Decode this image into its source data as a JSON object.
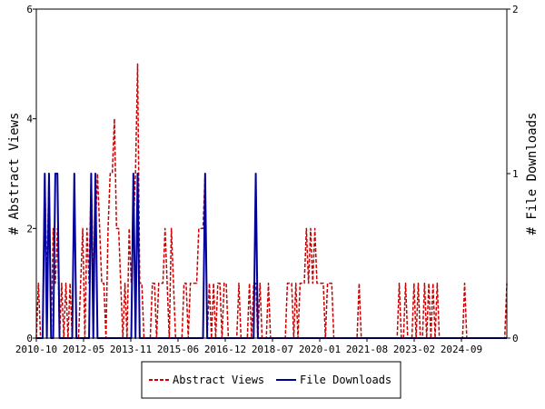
{
  "chart_data": {
    "type": "line",
    "x_axis": {
      "tick_labels": [
        "2010-10",
        "2012-05",
        "2013-11",
        "2015-06",
        "2016-12",
        "2018-07",
        "2020-01",
        "2021-08",
        "2023-02",
        "2024-09"
      ],
      "range": [
        "2010-10",
        "2025-10"
      ]
    },
    "y_left": {
      "label": "# Abstract Views",
      "ticks": [
        "0",
        "2",
        "4",
        "6"
      ],
      "range": [
        0,
        6
      ]
    },
    "y_right": {
      "label": "# File Downloads",
      "ticks": [
        "0",
        "1",
        "2"
      ],
      "range": [
        0,
        2
      ]
    },
    "grid": false,
    "legend_position": "bottom-center",
    "series": [
      {
        "name": "Abstract Views",
        "axis": "left",
        "color": "#cc0000",
        "style": "dashed",
        "values": [
          0,
          1,
          0,
          0,
          3,
          1,
          3,
          0,
          2,
          1,
          2,
          0,
          1,
          0,
          1,
          0,
          1,
          0,
          0,
          0,
          0,
          1,
          2,
          0,
          2,
          1,
          3,
          1,
          2,
          3,
          2,
          1,
          1,
          0,
          2,
          3,
          3,
          4,
          2,
          2,
          1,
          0,
          1,
          0,
          2,
          1,
          2,
          3,
          5,
          1,
          1,
          0,
          0,
          0,
          0,
          1,
          1,
          0,
          1,
          1,
          1,
          2,
          1,
          0,
          2,
          1,
          0,
          0,
          0,
          0,
          1,
          1,
          0,
          1,
          1,
          1,
          1,
          2,
          2,
          2,
          3,
          0,
          1,
          0,
          1,
          0,
          1,
          1,
          0,
          1,
          1,
          0,
          0,
          0,
          0,
          0,
          1,
          0,
          0,
          0,
          0,
          1,
          0,
          1,
          1,
          0,
          1,
          0,
          0,
          0,
          1,
          0,
          0,
          0,
          0,
          0,
          0,
          0,
          0,
          1,
          1,
          1,
          0,
          1,
          0,
          1,
          1,
          1,
          2,
          1,
          2,
          1,
          2,
          1,
          1,
          1,
          1,
          0,
          1,
          1,
          1,
          0,
          0,
          0,
          0,
          0,
          0,
          0,
          0,
          0,
          0,
          0,
          0,
          1,
          0,
          0,
          0,
          0,
          0,
          0,
          0,
          0,
          0,
          0,
          0,
          0,
          0,
          0,
          0,
          0,
          0,
          0,
          1,
          0,
          0,
          1,
          0,
          0,
          0,
          1,
          0,
          1,
          0,
          0,
          1,
          0,
          1,
          0,
          1,
          0,
          1,
          0,
          0,
          0,
          0,
          0,
          0,
          0,
          0,
          0,
          0,
          0,
          0,
          1,
          0,
          0,
          0,
          0,
          0,
          0,
          0,
          0,
          0,
          0,
          0,
          0,
          0,
          0,
          0,
          0,
          0,
          0,
          0,
          1
        ]
      },
      {
        "name": "File Downloads",
        "axis": "right",
        "color": "#000099",
        "style": "solid",
        "values": [
          0,
          0,
          0,
          0,
          1,
          0,
          1,
          0,
          0,
          1,
          1,
          0,
          0,
          0,
          0,
          0,
          0,
          0,
          1,
          0,
          0,
          0,
          0,
          0,
          0,
          0,
          1,
          0,
          1,
          0,
          0,
          0,
          0,
          0,
          0,
          0,
          0,
          0,
          0,
          0,
          0,
          0,
          0,
          0,
          0,
          0,
          1,
          0,
          1,
          0,
          0,
          0,
          0,
          0,
          0,
          0,
          0,
          0,
          0,
          0,
          0,
          0,
          0,
          0,
          0,
          0,
          0,
          0,
          0,
          0,
          0,
          0,
          0,
          0,
          0,
          0,
          0,
          0,
          0,
          0,
          1,
          0,
          0,
          0,
          0,
          0,
          0,
          0,
          0,
          0,
          0,
          0,
          0,
          0,
          0,
          0,
          0,
          0,
          0,
          0,
          0,
          0,
          0,
          0,
          1,
          0,
          0,
          0,
          0,
          0,
          0,
          0,
          0,
          0,
          0,
          0,
          0,
          0,
          0,
          0,
          0,
          0,
          0,
          0,
          0,
          0,
          0,
          0,
          0,
          0,
          0,
          0,
          0,
          0,
          0,
          0,
          0,
          0,
          0,
          0,
          0,
          0,
          0,
          0,
          0,
          0,
          0,
          0,
          0,
          0,
          0,
          0,
          0,
          0,
          0,
          0,
          0,
          0,
          0,
          0,
          0,
          0,
          0,
          0,
          0,
          0,
          0,
          0,
          0,
          0,
          0,
          0,
          0,
          0,
          0,
          0,
          0,
          0,
          0,
          0,
          0,
          0,
          0,
          0,
          0,
          0,
          0,
          0,
          0,
          0,
          0,
          0,
          0,
          0,
          0,
          0,
          0,
          0,
          0,
          0,
          0,
          0,
          0,
          0,
          0,
          0,
          0,
          0,
          0,
          0,
          0,
          0,
          0,
          0,
          0,
          0,
          0,
          0,
          0,
          0,
          0,
          0,
          0,
          0
        ]
      }
    ]
  }
}
